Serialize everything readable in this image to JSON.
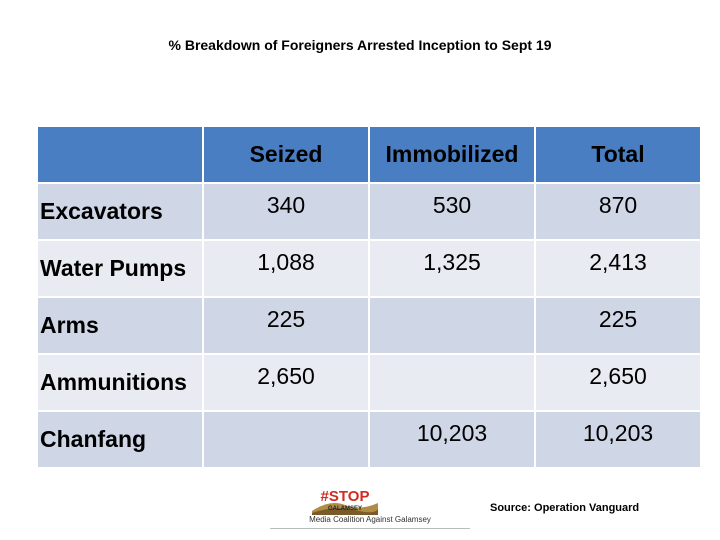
{
  "title": "% Breakdown of Foreigners Arrested Inception to Sept 19",
  "chart_data": {
    "type": "table",
    "columns": [
      "",
      "Seized",
      "Immobilized",
      "Total"
    ],
    "rows": [
      {
        "label": "Excavators",
        "cells": [
          "340",
          "530",
          "870"
        ]
      },
      {
        "label": "Water Pumps",
        "cells": [
          "1,088",
          "1,325",
          "2,413"
        ]
      },
      {
        "label": "Arms",
        "cells": [
          "225",
          "",
          "225"
        ]
      },
      {
        "label": "Ammunitions",
        "cells": [
          "2,650",
          "",
          "2,650"
        ]
      },
      {
        "label": "Chanfang",
        "cells": [
          "",
          "10,203",
          "10,203"
        ]
      }
    ]
  },
  "logo": {
    "wordmark": "#STOP GALAMSEY",
    "caption": "Media Coalition Against Galamsey"
  },
  "source": "Source: Operation Vanguard",
  "colors": {
    "header_fill": "#4a7ec2",
    "row_fill_dark": "#cfd6e6",
    "row_fill_light": "#e8ebf2",
    "logo_red": "#d42a1f"
  }
}
